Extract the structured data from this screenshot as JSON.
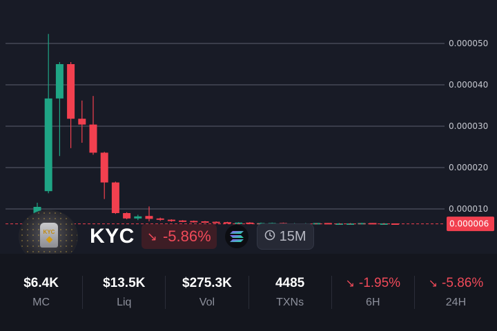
{
  "chart_data": {
    "type": "candlestick",
    "y_ticks": [
      "0.000050",
      "0.000040",
      "0.000030",
      "0.000020",
      "0.000010"
    ],
    "ylim": [
      6.4e-06,
      5.2e-05
    ],
    "current_price_label": "0.000006",
    "current_price": 6.4e-06,
    "colors": {
      "up": "#1fa585",
      "down": "#f2404f",
      "grid": "#3a3d4a",
      "price_tag": "#f2404f"
    },
    "candles": [
      {
        "o": 7e-06,
        "h": 1.15e-05,
        "l": 6.4e-06,
        "c": 1.05e-05
      },
      {
        "o": 1.43e-05,
        "h": 5.23e-05,
        "l": 1.38e-05,
        "c": 3.67e-05
      },
      {
        "o": 3.67e-05,
        "h": 4.55e-05,
        "l": 2.28e-05,
        "c": 4.5e-05
      },
      {
        "o": 4.5e-05,
        "h": 4.55e-05,
        "l": 2.47e-05,
        "c": 3.18e-05
      },
      {
        "o": 3.18e-05,
        "h": 3.62e-05,
        "l": 2.6e-05,
        "c": 3.04e-05
      },
      {
        "o": 3.04e-05,
        "h": 3.73e-05,
        "l": 2.31e-05,
        "c": 2.36e-05
      },
      {
        "o": 2.36e-05,
        "h": 2.38e-05,
        "l": 1.24e-05,
        "c": 1.64e-05
      },
      {
        "o": 1.64e-05,
        "h": 1.66e-05,
        "l": 8.8e-06,
        "c": 9e-06
      },
      {
        "o": 9e-06,
        "h": 9.2e-06,
        "l": 7.5e-06,
        "c": 7.7e-06
      },
      {
        "o": 7.7e-06,
        "h": 8.6e-06,
        "l": 7.3e-06,
        "c": 8.2e-06
      },
      {
        "o": 8.3e-06,
        "h": 1.06e-05,
        "l": 7e-06,
        "c": 7.6e-06
      },
      {
        "o": 7.7e-06,
        "h": 7.9e-06,
        "l": 7.1e-06,
        "c": 7.4e-06
      },
      {
        "o": 7.4e-06,
        "h": 7.5e-06,
        "l": 6.9e-06,
        "c": 7.2e-06
      },
      {
        "o": 7.2e-06,
        "h": 7.3e-06,
        "l": 6.8e-06,
        "c": 7.1e-06
      },
      {
        "o": 7.1e-06,
        "h": 7.2e-06,
        "l": 6.7e-06,
        "c": 7e-06
      },
      {
        "o": 7e-06,
        "h": 7.1e-06,
        "l": 6.7e-06,
        "c": 6.9e-06
      },
      {
        "o": 6.9e-06,
        "h": 7e-06,
        "l": 6.6e-06,
        "c": 6.8e-06
      },
      {
        "o": 6.8e-06,
        "h": 6.9e-06,
        "l": 6.6e-06,
        "c": 6.7e-06
      },
      {
        "o": 6.7e-06,
        "h": 6.8e-06,
        "l": 6.5e-06,
        "c": 6.7e-06
      },
      {
        "o": 6.7e-06,
        "h": 6.8e-06,
        "l": 6.5e-06,
        "c": 6.6e-06
      },
      {
        "o": 6.6e-06,
        "h": 6.7e-06,
        "l": 6.5e-06,
        "c": 6.6e-06
      },
      {
        "o": 6.6e-06,
        "h": 6.7e-06,
        "l": 6.5e-06,
        "c": 6.6e-06
      },
      {
        "o": 6.6e-06,
        "h": 6.7e-06,
        "l": 6.5e-06,
        "c": 6.5e-06
      },
      {
        "o": 6.5e-06,
        "h": 6.6e-06,
        "l": 6.4e-06,
        "c": 6.5e-06
      },
      {
        "o": 6.5e-06,
        "h": 6.6e-06,
        "l": 6.4e-06,
        "c": 6.5e-06
      },
      {
        "o": 6.5e-06,
        "h": 6.6e-06,
        "l": 6.4e-06,
        "c": 6.6e-06
      },
      {
        "o": 6.6e-06,
        "h": 6.6e-06,
        "l": 6.4e-06,
        "c": 6.5e-06
      },
      {
        "o": 6.5e-06,
        "h": 6.6e-06,
        "l": 6.4e-06,
        "c": 6.5e-06
      },
      {
        "o": 6.5e-06,
        "h": 6.6e-06,
        "l": 6.4e-06,
        "c": 6.5e-06
      },
      {
        "o": 6.5e-06,
        "h": 6.6e-06,
        "l": 6.4e-06,
        "c": 6.6e-06
      },
      {
        "o": 6.6e-06,
        "h": 6.6e-06,
        "l": 6.4e-06,
        "c": 6.5e-06
      },
      {
        "o": 6.5e-06,
        "h": 6.6e-06,
        "l": 6.4e-06,
        "c": 6.5e-06
      },
      {
        "o": 6.5e-06,
        "h": 6.5e-06,
        "l": 6.4e-06,
        "c": 6.4e-06
      }
    ]
  },
  "token": {
    "symbol": "KYC",
    "avatar_text": "KYC",
    "change": "-5.86%",
    "change_icon": "arrow-down-right-icon",
    "chain_icon": "solana-logo-icon",
    "interval": "15M",
    "interval_icon": "clock-icon"
  },
  "stats": [
    {
      "value": "$6.4K",
      "label": "MC"
    },
    {
      "value": "$13.5K",
      "label": "Liq"
    },
    {
      "value": "$275.3K",
      "label": "Vol"
    },
    {
      "value": "4485",
      "label": "TXNs"
    },
    {
      "value": "-1.95%",
      "label": "6H"
    },
    {
      "value": "-5.86%",
      "label": "24H"
    }
  ]
}
